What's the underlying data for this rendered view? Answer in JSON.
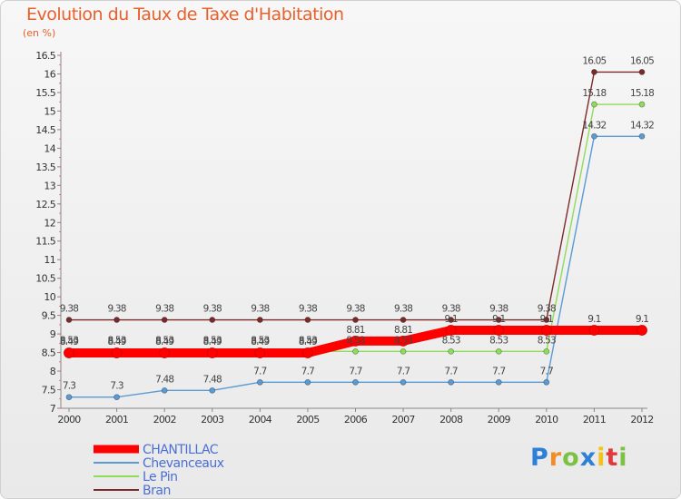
{
  "chart_data": {
    "type": "line",
    "title": "Evolution du Taux de Taxe d'Habitation",
    "ylabel": "(en %)",
    "xlabel": "",
    "categories": [
      "2000",
      "2001",
      "2002",
      "2003",
      "2004",
      "2005",
      "2006",
      "2007",
      "2008",
      "2009",
      "2010",
      "2011",
      "2012"
    ],
    "ylim": [
      7,
      16.5
    ],
    "yticks": [
      "7",
      "7.5",
      "8",
      "8.5",
      "9",
      "9.5",
      "10",
      "10.5",
      "11",
      "11.5",
      "12",
      "12.5",
      "13",
      "13.5",
      "14",
      "14.5",
      "15",
      "15.5",
      "16",
      "16.5"
    ],
    "grid": false,
    "legend_position": "bottom-left",
    "series": [
      {
        "name": "CHANTILLAC",
        "color": "#ff0000",
        "values": [
          8.49,
          8.49,
          8.49,
          8.49,
          8.49,
          8.49,
          8.81,
          8.81,
          9.1,
          9.1,
          9.1,
          9.1,
          9.1
        ],
        "labels": [
          "8.49",
          "8.49",
          "8.49",
          "8.49",
          "8.49",
          "8.49",
          "8.81",
          "8.81",
          "9.1",
          "9.1",
          "9.1",
          "9.1",
          "9.1"
        ]
      },
      {
        "name": "Chevanceaux",
        "color": "#5a9bd5",
        "values": [
          7.3,
          7.3,
          7.48,
          7.48,
          7.7,
          7.7,
          7.7,
          7.7,
          7.7,
          7.7,
          7.7,
          14.32,
          14.32
        ],
        "labels": [
          "7.3",
          "7.3",
          "7.48",
          "7.48",
          "7.7",
          "7.7",
          "7.7",
          "7.7",
          "7.7",
          "7.7",
          "7.7",
          "14.32",
          "14.32"
        ]
      },
      {
        "name": "Le Pin",
        "color": "#8fdc5a",
        "values": [
          8.53,
          8.53,
          8.53,
          8.53,
          8.53,
          8.53,
          8.53,
          8.53,
          8.53,
          8.53,
          8.53,
          15.18,
          15.18
        ],
        "labels": [
          "8.53",
          "8.53",
          "8.53",
          "8.53",
          "8.53",
          "8.53",
          "8.53",
          "8.53",
          "8.53",
          "8.53",
          "8.53",
          "15.18",
          "15.18"
        ]
      },
      {
        "name": "Bran",
        "color": "#7b2a2a",
        "values": [
          9.38,
          9.38,
          9.38,
          9.38,
          9.38,
          9.38,
          9.38,
          9.38,
          9.38,
          9.38,
          9.38,
          16.05,
          16.05
        ],
        "labels": [
          "9.38",
          "9.38",
          "9.38",
          "9.38",
          "9.38",
          "9.38",
          "9.38",
          "9.38",
          "9.38",
          "9.38",
          "9.38",
          "16.05",
          "16.05"
        ]
      }
    ]
  },
  "brand": {
    "letters": [
      "P",
      "r",
      "o",
      "x",
      "i",
      "t",
      "i"
    ],
    "colors": [
      "#2e7fd6",
      "#f28c28",
      "#7cc242",
      "#2e7fd6",
      "#f0c419",
      "#e23a3a",
      "#7cc242"
    ]
  }
}
